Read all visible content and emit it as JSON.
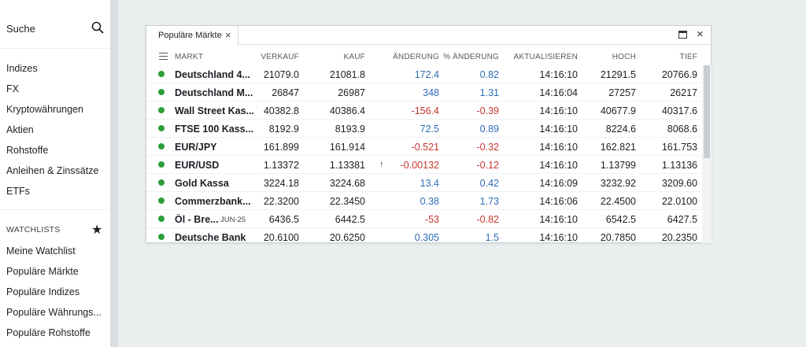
{
  "sidebar": {
    "search_label": "Suche",
    "nav_items": [
      "Indizes",
      "FX",
      "Kryptowährungen",
      "Aktien",
      "Rohstoffe",
      "Anleihen & Zinssätze",
      "ETFs"
    ],
    "watchlists_title": "WATCHLISTS",
    "watch_items": [
      "Meine Watchlist",
      "Populäre Märkte",
      "Populäre Indizes",
      "Populäre Währungs...",
      "Populäre Rohstoffe"
    ]
  },
  "panel": {
    "tab_label": "Populäre Märkte",
    "columns": {
      "market": "MARKT",
      "sell": "VERKAUF",
      "buy": "KAUF",
      "change": "ÄNDERUNG",
      "pct": "% ÄNDERUNG",
      "updated": "AKTUALISIEREN",
      "high": "HOCH",
      "low": "TIEF"
    },
    "rows": [
      {
        "name": "Deutschland 4...",
        "expiry": "",
        "sell": "21079.0",
        "buy": "21081.8",
        "arrow": "",
        "change": "172.4",
        "pct": "0.82",
        "time": "14:16:10",
        "high": "21291.5",
        "low": "20766.9",
        "dir": "pos"
      },
      {
        "name": "Deutschland M...",
        "expiry": "",
        "sell": "26847",
        "buy": "26987",
        "arrow": "",
        "change": "348",
        "pct": "1.31",
        "time": "14:16:04",
        "high": "27257",
        "low": "26217",
        "dir": "pos"
      },
      {
        "name": "Wall Street Kas...",
        "expiry": "",
        "sell": "40382.8",
        "buy": "40386.4",
        "arrow": "",
        "change": "-156.4",
        "pct": "-0.39",
        "time": "14:16:10",
        "high": "40677.9",
        "low": "40317.6",
        "dir": "neg"
      },
      {
        "name": "FTSE 100 Kass...",
        "expiry": "",
        "sell": "8192.9",
        "buy": "8193.9",
        "arrow": "",
        "change": "72.5",
        "pct": "0.89",
        "time": "14:16:10",
        "high": "8224.6",
        "low": "8068.6",
        "dir": "pos"
      },
      {
        "name": "EUR/JPY",
        "expiry": "",
        "sell": "161.899",
        "buy": "161.914",
        "arrow": "",
        "change": "-0.521",
        "pct": "-0.32",
        "time": "14:16:10",
        "high": "162.821",
        "low": "161.753",
        "dir": "neg"
      },
      {
        "name": "EUR/USD",
        "expiry": "",
        "sell": "1.13372",
        "buy": "1.13381",
        "arrow": "↑",
        "change": "-0.00132",
        "pct": "-0.12",
        "time": "14:16:10",
        "high": "1.13799",
        "low": "1.13136",
        "dir": "neg"
      },
      {
        "name": "Gold Kassa",
        "expiry": "",
        "sell": "3224.18",
        "buy": "3224.68",
        "arrow": "",
        "change": "13.4",
        "pct": "0.42",
        "time": "14:16:09",
        "high": "3232.92",
        "low": "3209.60",
        "dir": "pos"
      },
      {
        "name": "Commerzbank...",
        "expiry": "",
        "sell": "22.3200",
        "buy": "22.3450",
        "arrow": "",
        "change": "0.38",
        "pct": "1.73",
        "time": "14:16:06",
        "high": "22.4500",
        "low": "22.0100",
        "dir": "pos"
      },
      {
        "name": "Öl - Bre...",
        "expiry": "JUN-25",
        "sell": "6436.5",
        "buy": "6442.5",
        "arrow": "",
        "change": "-53",
        "pct": "-0.82",
        "time": "14:16:10",
        "high": "6542.5",
        "low": "6427.5",
        "dir": "neg"
      },
      {
        "name": "Deutsche Bank",
        "expiry": "",
        "sell": "20.6100",
        "buy": "20.6250",
        "arrow": "",
        "change": "0.305",
        "pct": "1.5",
        "time": "14:16:10",
        "high": "20.7850",
        "low": "20.2350",
        "dir": "pos"
      }
    ]
  },
  "colors": {
    "positive": "#2e6db4",
    "negative": "#c8372d",
    "status_dot": "#2e9e3a"
  }
}
